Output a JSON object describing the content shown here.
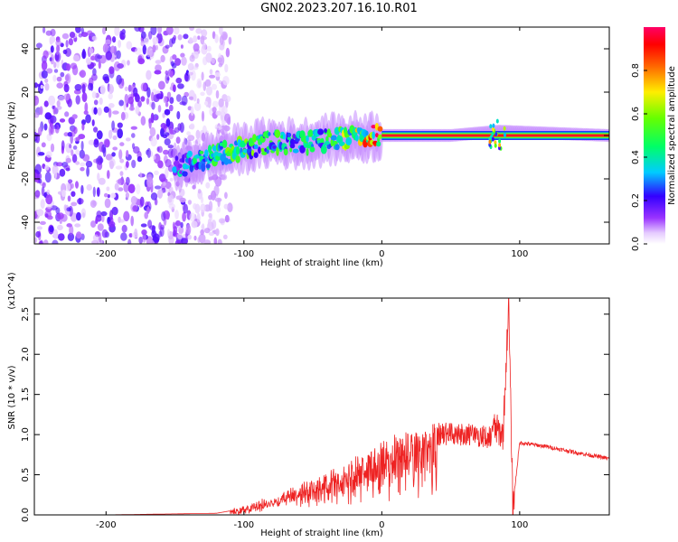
{
  "title": "GN02.2023.207.16.10.R01",
  "chart_data": [
    {
      "type": "heatmap",
      "title": "GN02.2023.207.16.10.R01",
      "xlabel": "Height of straight line (km)",
      "ylabel": "Frequency (Hz)",
      "xlim": [
        -252,
        165
      ],
      "ylim": [
        -50,
        50
      ],
      "xticks": [
        -200,
        -100,
        0,
        100
      ],
      "xtick_labels": [
        "-200",
        "-100",
        "0",
        "100"
      ],
      "yticks": [
        -40,
        -20,
        0,
        20,
        40
      ],
      "ytick_labels": [
        "-40",
        "-20",
        "0",
        "20",
        "40"
      ],
      "colorbar": {
        "label": "Normalized spectral amplitude",
        "range": [
          0,
          1
        ],
        "ticks": [
          0,
          0.2,
          0.4,
          0.6,
          0.8
        ],
        "tick_labels": [
          "0.0",
          "0.2",
          "0.4",
          "0.6",
          "0.8"
        ],
        "colormap": "rainbow (white-violet-blue-cyan-green-yellow-red-magenta)"
      },
      "features": {
        "noise_region_x": [
          -252,
          -120
        ],
        "signal_trace": [
          {
            "x": -150,
            "f": -15,
            "amp": 0.3
          },
          {
            "x": -120,
            "f": -9,
            "amp": 0.45
          },
          {
            "x": -100,
            "f": -6,
            "amp": 0.5
          },
          {
            "x": -80,
            "f": -3,
            "amp": 0.45
          },
          {
            "x": -60,
            "f": -4,
            "amp": 0.4
          },
          {
            "x": -40,
            "f": -2,
            "amp": 0.45
          },
          {
            "x": -20,
            "f": -1,
            "amp": 0.6
          },
          {
            "x": 0,
            "f": 0,
            "amp": 0.85
          },
          {
            "x": 50,
            "f": 0,
            "amp": 0.9
          },
          {
            "x": 85,
            "f": 2,
            "amp": 0.75
          },
          {
            "x": 165,
            "f": 0,
            "amp": 0.9
          }
        ]
      },
      "grid": false
    },
    {
      "type": "line",
      "xlabel": "Height of straight line (km)",
      "ylabel": "SNR (10 * v/v)",
      "y_multiplier": "(x10^4)",
      "xlim": [
        -252,
        165
      ],
      "ylim": [
        0,
        2.7
      ],
      "xticks": [
        -200,
        -100,
        0,
        100
      ],
      "xtick_labels": [
        "-200",
        "-100",
        "0",
        "100"
      ],
      "yticks": [
        0,
        0.5,
        1.0,
        1.5,
        2.0,
        2.5
      ],
      "ytick_labels": [
        "0.0",
        "0.5",
        "1.0",
        "1.5",
        "2.0",
        "2.5"
      ],
      "series": [
        {
          "color": "#ee2222",
          "x": [
            -252,
            -200,
            -120,
            -100,
            -80,
            -60,
            -40,
            -20,
            0,
            20,
            40,
            60,
            80,
            88,
            92,
            95,
            100,
            120,
            140,
            165
          ],
          "y": [
            0.0,
            0.0,
            0.02,
            0.08,
            0.2,
            0.38,
            0.52,
            0.68,
            0.88,
            1.05,
            1.15,
            1.15,
            1.1,
            1.0,
            2.65,
            0.1,
            0.9,
            0.85,
            0.78,
            0.7
          ]
        }
      ],
      "grid": false
    }
  ]
}
